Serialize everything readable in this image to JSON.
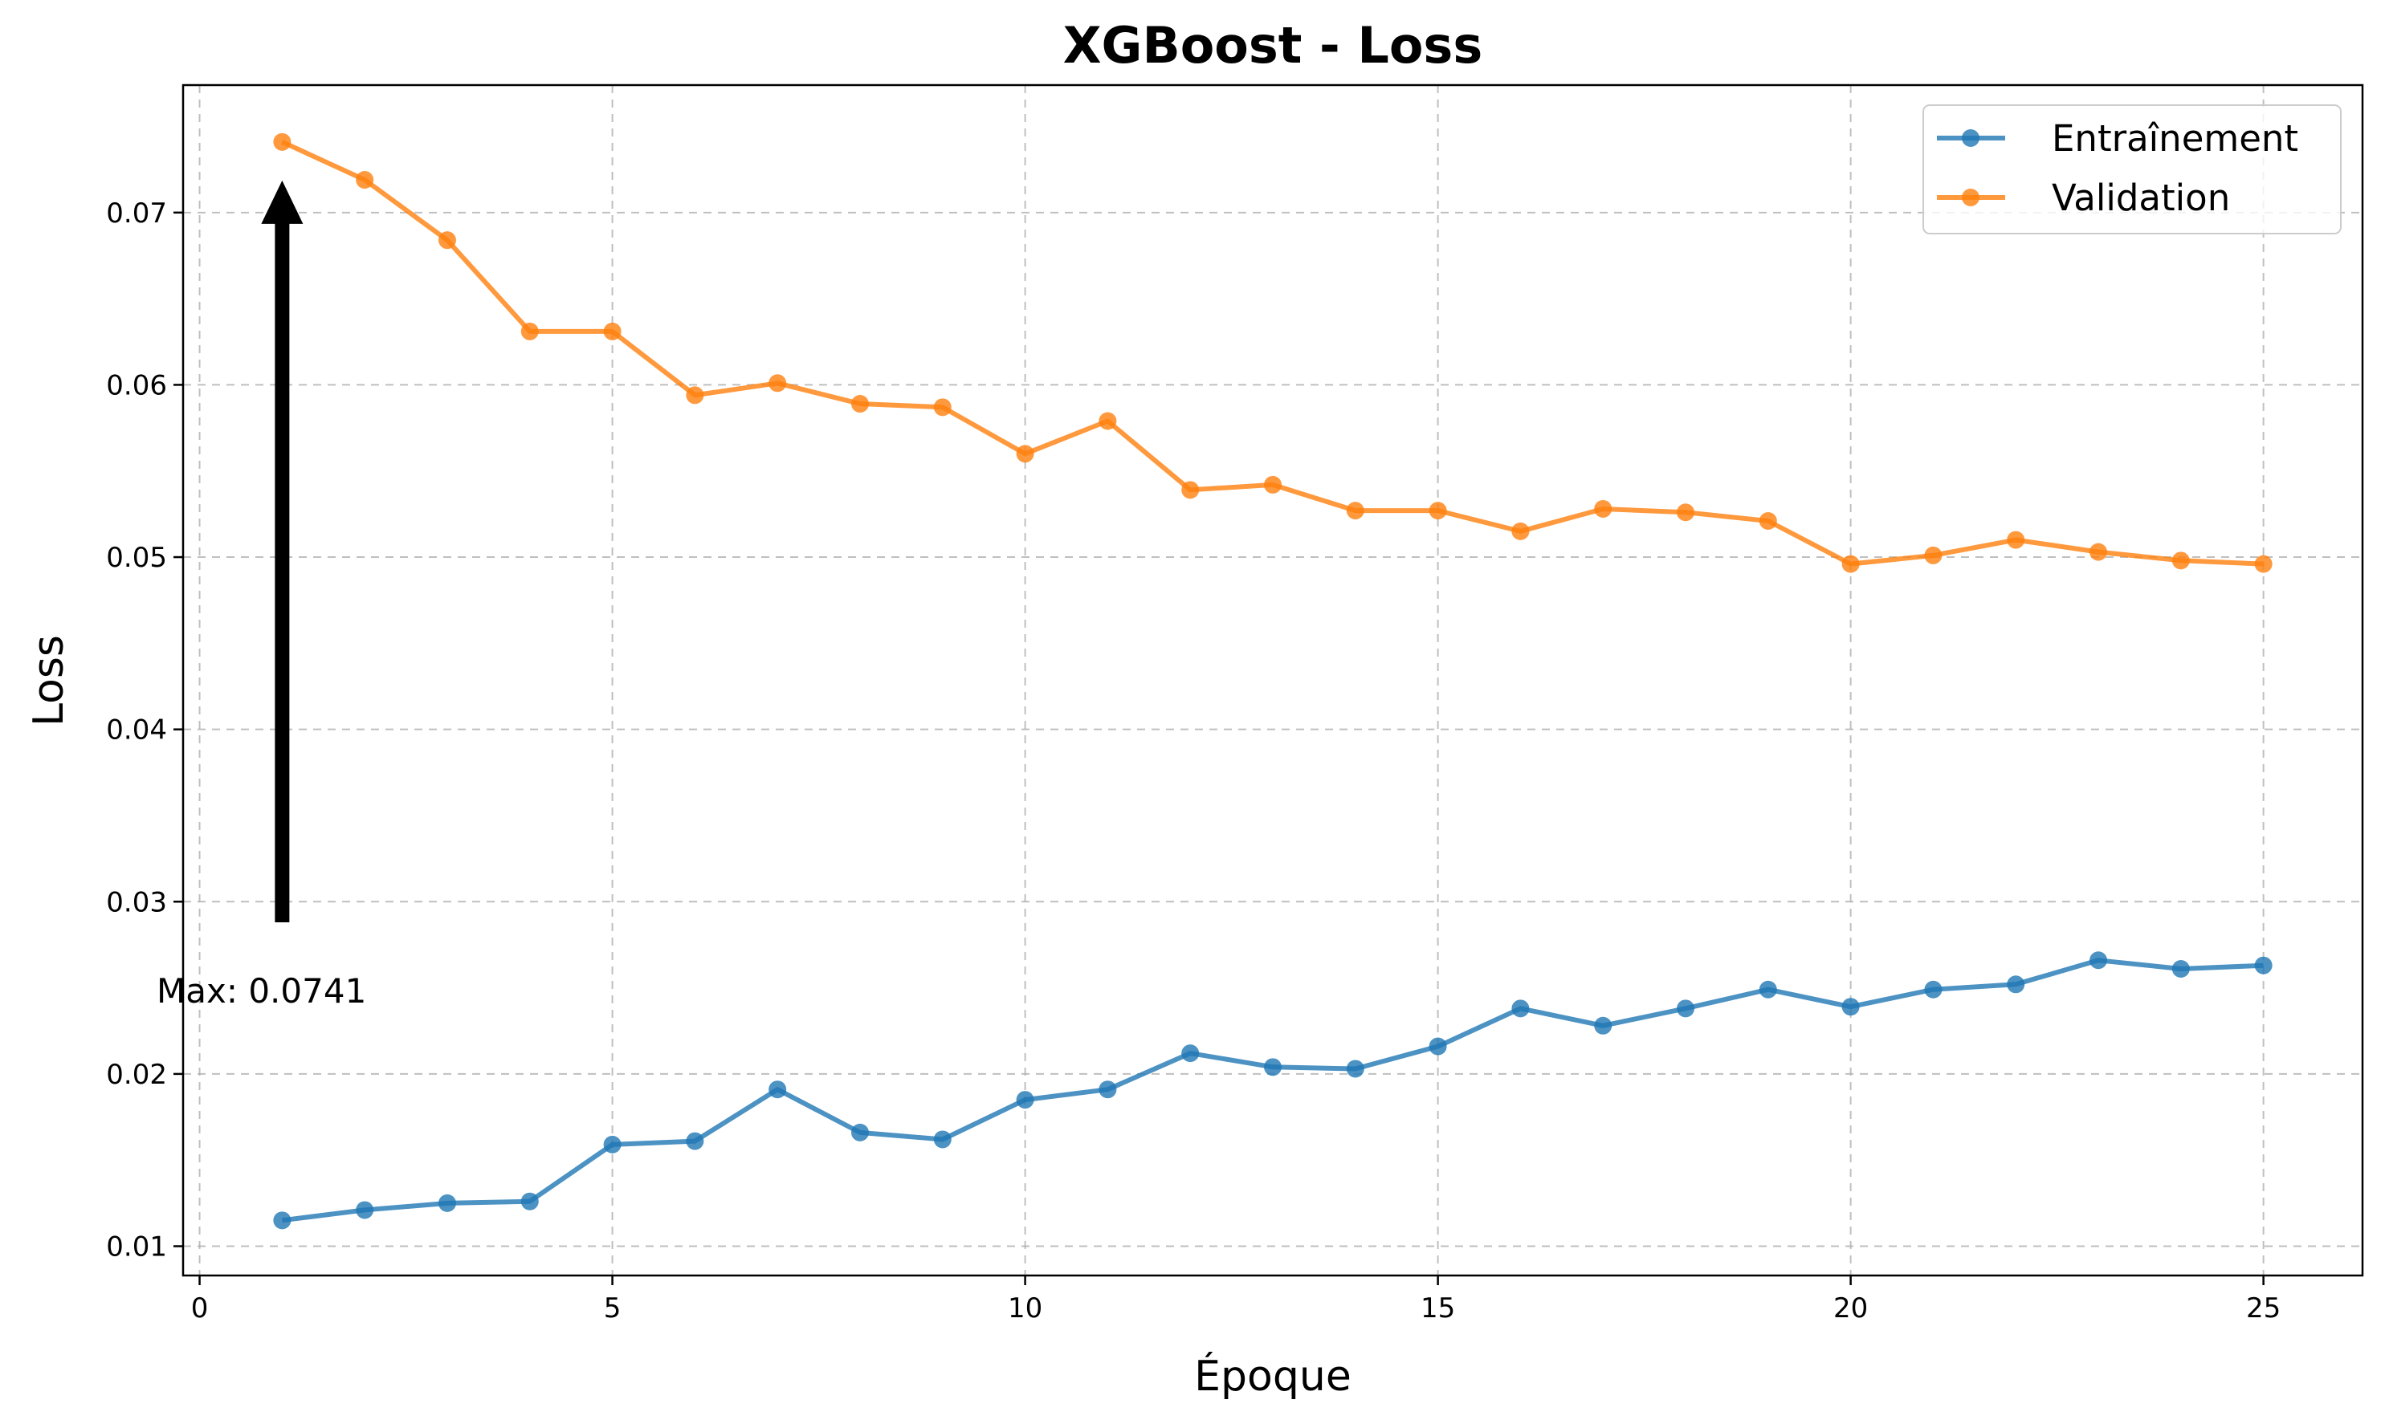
{
  "chart_data": {
    "type": "line",
    "title": "XGBoost - Loss",
    "xlabel": "Époque",
    "ylabel": "Loss",
    "xlim": [
      -0.2,
      26.2
    ],
    "ylim": [
      0.0083,
      0.0774
    ],
    "xticks": [
      0,
      5,
      10,
      15,
      20,
      25
    ],
    "yticks": [
      0.01,
      0.02,
      0.03,
      0.04,
      0.05,
      0.06,
      0.07
    ],
    "ytick_labels": [
      "0.01",
      "0.02",
      "0.03",
      "0.04",
      "0.05",
      "0.06",
      "0.07"
    ],
    "grid": true,
    "legend_position": "top-right",
    "x": [
      1,
      2,
      3,
      4,
      5,
      6,
      7,
      8,
      9,
      10,
      11,
      12,
      13,
      14,
      15,
      16,
      17,
      18,
      19,
      20,
      21,
      22,
      23,
      24,
      25
    ],
    "series": [
      {
        "name": "Entraînement",
        "color": "#1f77b4",
        "values": [
          0.0115,
          0.0121,
          0.0125,
          0.0126,
          0.0159,
          0.0161,
          0.0191,
          0.0166,
          0.0162,
          0.0185,
          0.0191,
          0.0212,
          0.0204,
          0.0203,
          0.0216,
          0.0238,
          0.0228,
          0.0238,
          0.0249,
          0.0239,
          0.0249,
          0.0252,
          0.0266,
          0.0261,
          0.0263
        ]
      },
      {
        "name": "Validation",
        "color": "#ff7f0e",
        "values": [
          0.0741,
          0.0719,
          0.0684,
          0.0631,
          0.0631,
          0.0594,
          0.0601,
          0.0589,
          0.0587,
          0.056,
          0.0579,
          0.0539,
          0.0542,
          0.0527,
          0.0527,
          0.0515,
          0.0528,
          0.0526,
          0.0521,
          0.0496,
          0.0501,
          0.051,
          0.0503,
          0.0498,
          0.0496
        ]
      }
    ],
    "annotation": {
      "text": "Max: 0.0741",
      "target_x": 1,
      "target_y": 0.0741
    }
  }
}
